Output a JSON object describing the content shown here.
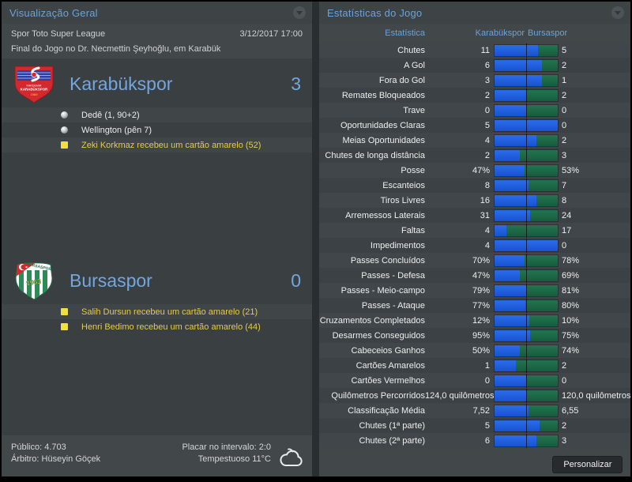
{
  "colors": {
    "accent_blue": "#6ba2da",
    "team_name_blue": "#74a6de",
    "bar_home_blue": "#1f5fe0",
    "bar_away_green": "#1e6b4a",
    "card_yellow": "#f2df39",
    "yellow_event_text": "#e4cb49",
    "panel_bg": "#42474a"
  },
  "overview_panel": {
    "title": "Visualização Geral",
    "competition": "Spor Toto Super League",
    "datetime": "3/12/2017 17:00",
    "subtitle": "Final do Jogo no Dr. Necmettin Şeyhoğlu, em Karabük",
    "home": {
      "name": "Karabükspor",
      "score": "3",
      "events": [
        {
          "type": "goal",
          "text": "Dedê (1, 90+2)"
        },
        {
          "type": "goal",
          "text": "Wellington (pên 7)"
        },
        {
          "type": "yellow",
          "text": "Zeki Korkmaz recebeu um cartão amarelo (52)"
        }
      ]
    },
    "away": {
      "name": "Bursaspor",
      "score": "0",
      "events": [
        {
          "type": "yellow",
          "text": "Salih Dursun recebeu um cartão amarelo (21)"
        },
        {
          "type": "yellow",
          "text": "Henri Bedimo recebeu um cartão amarelo (44)"
        }
      ]
    },
    "footer": {
      "attendance_label": "Público:",
      "attendance": "4.703",
      "referee_label": "Árbitro:",
      "referee": "Hüseyin Göçek",
      "halftime_label": "Placar no intervalo:",
      "halftime": "2:0",
      "weather": "Tempestuoso 11°C"
    },
    "icons": {
      "dropdown": "chevron-down-icon",
      "weather": "cloud-icon",
      "goal": "goal-icon",
      "yellow_card": "yellow-card-icon"
    }
  },
  "stats_panel": {
    "title": "Estatísticas do Jogo",
    "columns": {
      "stat": "Estatística",
      "home": "Karabükspor",
      "away": "Bursaspor"
    },
    "rows": [
      {
        "label": "Chutes",
        "home": "11",
        "away": "5",
        "home_val": 11,
        "away_val": 5
      },
      {
        "label": "A Gol",
        "home": "6",
        "away": "2",
        "home_val": 6,
        "away_val": 2
      },
      {
        "label": "Fora do Gol",
        "home": "3",
        "away": "1",
        "home_val": 3,
        "away_val": 1
      },
      {
        "label": "Remates Bloqueados",
        "home": "2",
        "away": "2",
        "home_val": 2,
        "away_val": 2
      },
      {
        "label": "Trave",
        "home": "0",
        "away": "0",
        "home_val": 0,
        "away_val": 0
      },
      {
        "label": "Oportunidades Claras",
        "home": "5",
        "away": "0",
        "home_val": 5,
        "away_val": 0
      },
      {
        "label": "Meias Oportunidades",
        "home": "4",
        "away": "2",
        "home_val": 4,
        "away_val": 2
      },
      {
        "label": "Chutes de longa distância",
        "home": "2",
        "away": "3",
        "home_val": 2,
        "away_val": 3
      },
      {
        "label": "Posse",
        "home": "47%",
        "away": "53%",
        "home_val": 47,
        "away_val": 53
      },
      {
        "label": "Escanteios",
        "home": "8",
        "away": "7",
        "home_val": 8,
        "away_val": 7
      },
      {
        "label": "Tiros Livres",
        "home": "16",
        "away": "8",
        "home_val": 16,
        "away_val": 8
      },
      {
        "label": "Arremessos Laterais",
        "home": "31",
        "away": "24",
        "home_val": 31,
        "away_val": 24
      },
      {
        "label": "Faltas",
        "home": "4",
        "away": "17",
        "home_val": 4,
        "away_val": 17
      },
      {
        "label": "Impedimentos",
        "home": "4",
        "away": "0",
        "home_val": 4,
        "away_val": 0
      },
      {
        "label": "Passes Concluídos",
        "home": "70%",
        "away": "78%",
        "home_val": 70,
        "away_val": 78
      },
      {
        "label": "Passes - Defesa",
        "home": "47%",
        "away": "69%",
        "home_val": 47,
        "away_val": 69
      },
      {
        "label": "Passes - Meio-campo",
        "home": "79%",
        "away": "81%",
        "home_val": 79,
        "away_val": 81
      },
      {
        "label": "Passes - Ataque",
        "home": "77%",
        "away": "80%",
        "home_val": 77,
        "away_val": 80
      },
      {
        "label": "Cruzamentos Completados",
        "home": "12%",
        "away": "10%",
        "home_val": 12,
        "away_val": 10
      },
      {
        "label": "Desarmes Conseguidos",
        "home": "95%",
        "away": "75%",
        "home_val": 95,
        "away_val": 75
      },
      {
        "label": "Cabeceios Ganhos",
        "home": "50%",
        "away": "74%",
        "home_val": 50,
        "away_val": 74
      },
      {
        "label": "Cartões Amarelos",
        "home": "1",
        "away": "2",
        "home_val": 1,
        "away_val": 2
      },
      {
        "label": "Cartões Vermelhos",
        "home": "0",
        "away": "0",
        "home_val": 0,
        "away_val": 0
      },
      {
        "label": "Quilômetros Percorridos",
        "home": "124,0 quilômetros",
        "away": "120,0 quilômetros",
        "home_val": 124,
        "away_val": 120
      },
      {
        "label": "Classificação Média",
        "home": "7,52",
        "away": "6,55",
        "home_val": 7.52,
        "away_val": 6.55
      },
      {
        "label": "Chutes (1ª parte)",
        "home": "5",
        "away": "2",
        "home_val": 5,
        "away_val": 2
      },
      {
        "label": "Chutes (2ª parte)",
        "home": "6",
        "away": "3",
        "home_val": 6,
        "away_val": 3
      }
    ],
    "personalize_label": "Personalizar"
  }
}
